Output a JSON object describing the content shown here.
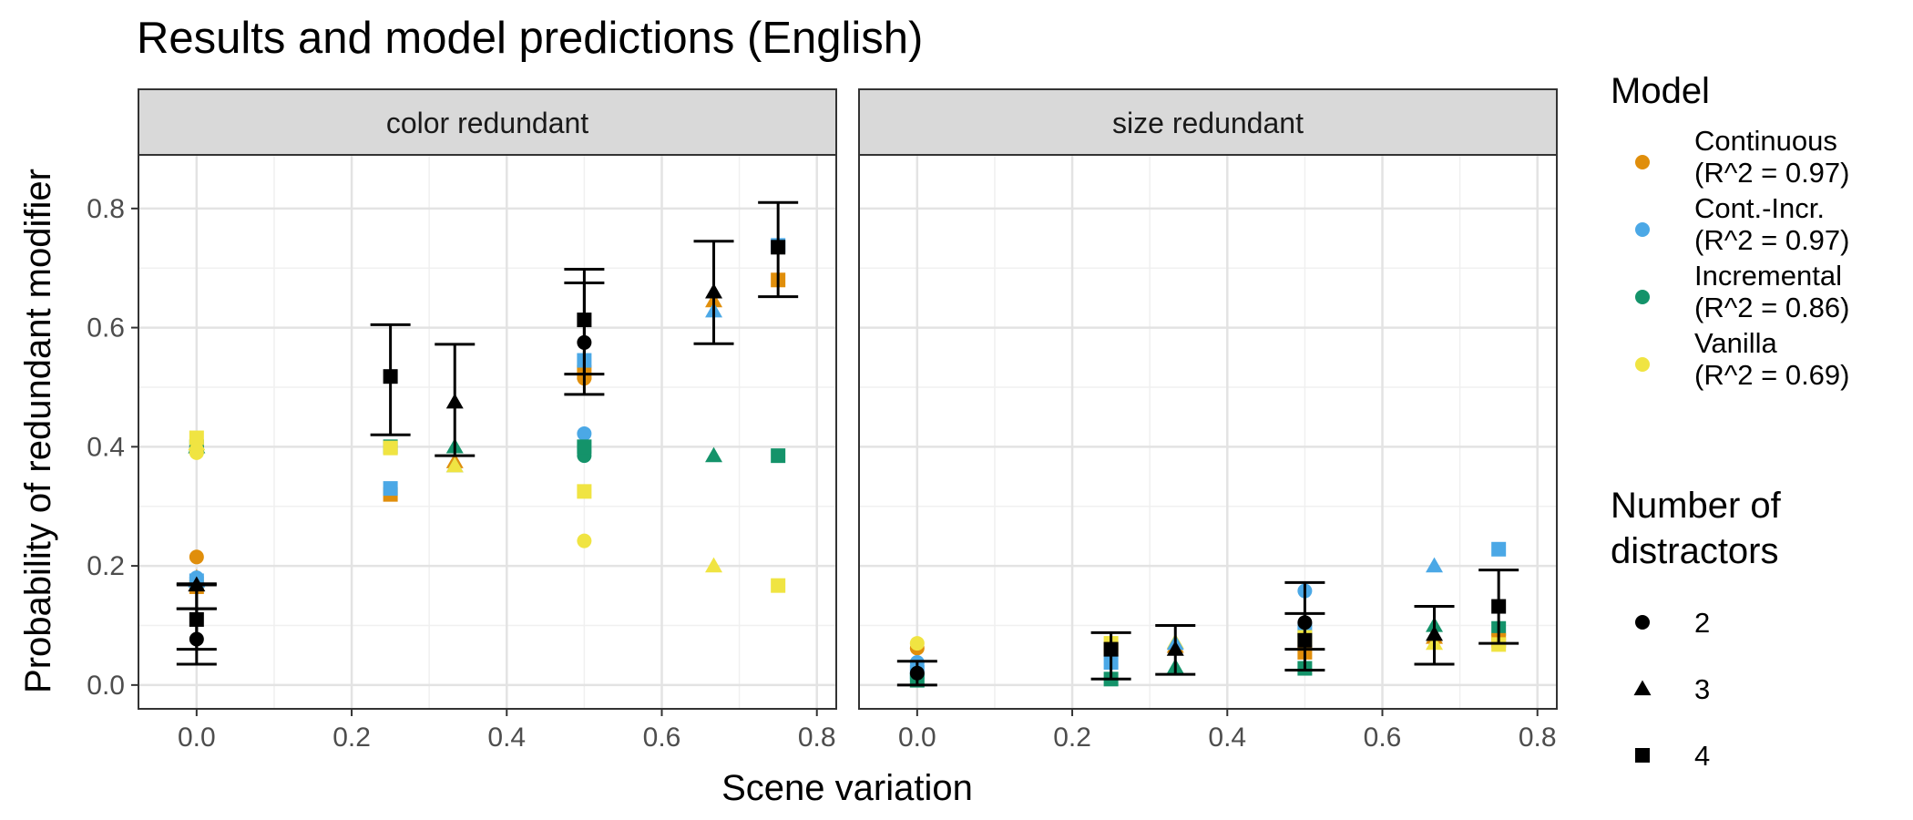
{
  "chart_data": {
    "type": "scatter",
    "title": "Results and model predictions (English)",
    "xlabel": "Scene variation",
    "ylabel": "Probability of redundant modifier",
    "xlim": [
      -0.075,
      0.825
    ],
    "ylim": [
      -0.04,
      0.89
    ],
    "x_ticks": [
      0.0,
      0.2,
      0.4,
      0.6,
      0.8
    ],
    "x_tick_labels": [
      "0.0",
      "0.2",
      "0.4",
      "0.6",
      "0.8"
    ],
    "y_ticks": [
      0.0,
      0.2,
      0.4,
      0.6,
      0.8
    ],
    "y_tick_labels": [
      "0.0",
      "0.2",
      "0.4",
      "0.6",
      "0.8"
    ],
    "grid": true,
    "legend_position": "right",
    "colors": {
      "Continuous": "#E08E0B",
      "Cont.-Incr.": "#4BA8E6",
      "Incremental": "#14936A",
      "Vanilla": "#F0E442",
      "Empirical": "#000000"
    },
    "panels": [
      {
        "strip_label": "color redundant",
        "empirical": [
          {
            "x": 0.0,
            "distractors": 2,
            "y": 0.077,
            "ymin": 0.035,
            "ymax": 0.128
          },
          {
            "x": 0.0,
            "distractors": 3,
            "y": 0.168,
            "ymin": 0.128,
            "ymax": 0.168
          },
          {
            "x": 0.0,
            "distractors": 4,
            "y": 0.11,
            "ymin": 0.06,
            "ymax": 0.17
          },
          {
            "x": 0.25,
            "distractors": 4,
            "y": 0.518,
            "ymin": 0.42,
            "ymax": 0.605
          },
          {
            "x": 0.333,
            "distractors": 3,
            "y": 0.475,
            "ymin": 0.385,
            "ymax": 0.572
          },
          {
            "x": 0.5,
            "distractors": 2,
            "y": 0.575,
            "ymin": 0.488,
            "ymax": 0.675
          },
          {
            "x": 0.5,
            "distractors": 4,
            "y": 0.613,
            "ymin": 0.522,
            "ymax": 0.698
          },
          {
            "x": 0.667,
            "distractors": 3,
            "y": 0.66,
            "ymin": 0.573,
            "ymax": 0.745
          },
          {
            "x": 0.75,
            "distractors": 4,
            "y": 0.735,
            "ymin": 0.652,
            "ymax": 0.81
          }
        ],
        "predictions": [
          {
            "model": "Continuous",
            "x": 0.0,
            "distractors": 2,
            "y": 0.215
          },
          {
            "model": "Continuous",
            "x": 0.0,
            "distractors": 3,
            "y": 0.18
          },
          {
            "model": "Continuous",
            "x": 0.0,
            "distractors": 4,
            "y": 0.165
          },
          {
            "model": "Cont.-Incr.",
            "x": 0.0,
            "distractors": 2,
            "y": 0.18
          },
          {
            "model": "Cont.-Incr.",
            "x": 0.0,
            "distractors": 3,
            "y": 0.175
          },
          {
            "model": "Cont.-Incr.",
            "x": 0.0,
            "distractors": 4,
            "y": 0.175
          },
          {
            "model": "Incremental",
            "x": 0.0,
            "distractors": 2,
            "y": 0.4
          },
          {
            "model": "Incremental",
            "x": 0.0,
            "distractors": 3,
            "y": 0.4
          },
          {
            "model": "Incremental",
            "x": 0.0,
            "distractors": 4,
            "y": 0.4
          },
          {
            "model": "Vanilla",
            "x": 0.0,
            "distractors": 2,
            "y": 0.39
          },
          {
            "model": "Vanilla",
            "x": 0.0,
            "distractors": 3,
            "y": 0.405
          },
          {
            "model": "Vanilla",
            "x": 0.0,
            "distractors": 4,
            "y": 0.415
          },
          {
            "model": "Continuous",
            "x": 0.25,
            "distractors": 4,
            "y": 0.32
          },
          {
            "model": "Cont.-Incr.",
            "x": 0.25,
            "distractors": 4,
            "y": 0.33
          },
          {
            "model": "Incremental",
            "x": 0.25,
            "distractors": 4,
            "y": 0.4
          },
          {
            "model": "Vanilla",
            "x": 0.25,
            "distractors": 4,
            "y": 0.398
          },
          {
            "model": "Continuous",
            "x": 0.333,
            "distractors": 3,
            "y": 0.375
          },
          {
            "model": "Cont.-Incr.",
            "x": 0.333,
            "distractors": 3,
            "y": 0.368
          },
          {
            "model": "Incremental",
            "x": 0.333,
            "distractors": 3,
            "y": 0.4
          },
          {
            "model": "Vanilla",
            "x": 0.333,
            "distractors": 3,
            "y": 0.368
          },
          {
            "model": "Continuous",
            "x": 0.5,
            "distractors": 2,
            "y": 0.515
          },
          {
            "model": "Continuous",
            "x": 0.5,
            "distractors": 4,
            "y": 0.525
          },
          {
            "model": "Cont.-Incr.",
            "x": 0.5,
            "distractors": 2,
            "y": 0.422
          },
          {
            "model": "Cont.-Incr.",
            "x": 0.5,
            "distractors": 4,
            "y": 0.545
          },
          {
            "model": "Incremental",
            "x": 0.5,
            "distractors": 2,
            "y": 0.385
          },
          {
            "model": "Incremental",
            "x": 0.5,
            "distractors": 4,
            "y": 0.4
          },
          {
            "model": "Vanilla",
            "x": 0.5,
            "distractors": 2,
            "y": 0.242
          },
          {
            "model": "Vanilla",
            "x": 0.5,
            "distractors": 4,
            "y": 0.325
          },
          {
            "model": "Continuous",
            "x": 0.667,
            "distractors": 3,
            "y": 0.645
          },
          {
            "model": "Cont.-Incr.",
            "x": 0.667,
            "distractors": 3,
            "y": 0.628
          },
          {
            "model": "Incremental",
            "x": 0.667,
            "distractors": 3,
            "y": 0.385
          },
          {
            "model": "Vanilla",
            "x": 0.667,
            "distractors": 3,
            "y": 0.2
          },
          {
            "model": "Continuous",
            "x": 0.75,
            "distractors": 4,
            "y": 0.68
          },
          {
            "model": "Cont.-Incr.",
            "x": 0.75,
            "distractors": 4,
            "y": 0.738
          },
          {
            "model": "Incremental",
            "x": 0.75,
            "distractors": 4,
            "y": 0.385
          },
          {
            "model": "Vanilla",
            "x": 0.75,
            "distractors": 4,
            "y": 0.167
          }
        ]
      },
      {
        "strip_label": "size redundant",
        "empirical": [
          {
            "x": 0.0,
            "distractors": 2,
            "y": 0.02,
            "ymin": 0.0,
            "ymax": 0.04
          },
          {
            "x": 0.25,
            "distractors": 4,
            "y": 0.06,
            "ymin": 0.01,
            "ymax": 0.088
          },
          {
            "x": 0.333,
            "distractors": 3,
            "y": 0.06,
            "ymin": 0.018,
            "ymax": 0.1
          },
          {
            "x": 0.5,
            "distractors": 2,
            "y": 0.105,
            "ymin": 0.06,
            "ymax": 0.172
          },
          {
            "x": 0.5,
            "distractors": 4,
            "y": 0.075,
            "ymin": 0.025,
            "ymax": 0.12
          },
          {
            "x": 0.667,
            "distractors": 3,
            "y": 0.085,
            "ymin": 0.035,
            "ymax": 0.132
          },
          {
            "x": 0.75,
            "distractors": 4,
            "y": 0.132,
            "ymin": 0.07,
            "ymax": 0.193
          }
        ],
        "predictions": [
          {
            "model": "Continuous",
            "x": 0.0,
            "distractors": 2,
            "y": 0.062
          },
          {
            "model": "Vanilla",
            "x": 0.0,
            "distractors": 2,
            "y": 0.07
          },
          {
            "model": "Cont.-Incr.",
            "x": 0.0,
            "distractors": 2,
            "y": 0.038
          },
          {
            "model": "Cont.-Incr.",
            "x": 0.0,
            "distractors": 4,
            "y": 0.022
          },
          {
            "model": "Incremental",
            "x": 0.0,
            "distractors": 4,
            "y": 0.008
          },
          {
            "model": "Vanilla",
            "x": 0.25,
            "distractors": 4,
            "y": 0.07
          },
          {
            "model": "Continuous",
            "x": 0.25,
            "distractors": 4,
            "y": 0.06
          },
          {
            "model": "Cont.-Incr.",
            "x": 0.25,
            "distractors": 4,
            "y": 0.038
          },
          {
            "model": "Incremental",
            "x": 0.25,
            "distractors": 4,
            "y": 0.01
          },
          {
            "model": "Vanilla",
            "x": 0.333,
            "distractors": 3,
            "y": 0.072
          },
          {
            "model": "Continuous",
            "x": 0.333,
            "distractors": 3,
            "y": 0.065
          },
          {
            "model": "Cont.-Incr.",
            "x": 0.333,
            "distractors": 3,
            "y": 0.07
          },
          {
            "model": "Incremental",
            "x": 0.333,
            "distractors": 3,
            "y": 0.03
          },
          {
            "model": "Cont.-Incr.",
            "x": 0.5,
            "distractors": 2,
            "y": 0.158
          },
          {
            "model": "Continuous",
            "x": 0.5,
            "distractors": 2,
            "y": 0.1
          },
          {
            "model": "Cont.-Incr.",
            "x": 0.5,
            "distractors": 4,
            "y": 0.092
          },
          {
            "model": "Vanilla",
            "x": 0.5,
            "distractors": 4,
            "y": 0.08
          },
          {
            "model": "Continuous",
            "x": 0.5,
            "distractors": 4,
            "y": 0.055
          },
          {
            "model": "Incremental",
            "x": 0.5,
            "distractors": 4,
            "y": 0.028
          },
          {
            "model": "Cont.-Incr.",
            "x": 0.667,
            "distractors": 3,
            "y": 0.2
          },
          {
            "model": "Incremental",
            "x": 0.667,
            "distractors": 3,
            "y": 0.1
          },
          {
            "model": "Continuous",
            "x": 0.667,
            "distractors": 3,
            "y": 0.08
          },
          {
            "model": "Vanilla",
            "x": 0.667,
            "distractors": 3,
            "y": 0.07
          },
          {
            "model": "Cont.-Incr.",
            "x": 0.75,
            "distractors": 4,
            "y": 0.228
          },
          {
            "model": "Incremental",
            "x": 0.75,
            "distractors": 4,
            "y": 0.095
          },
          {
            "model": "Continuous",
            "x": 0.75,
            "distractors": 4,
            "y": 0.075
          },
          {
            "model": "Vanilla",
            "x": 0.75,
            "distractors": 4,
            "y": 0.068
          }
        ]
      }
    ],
    "legend_model": {
      "title": "Model",
      "items": [
        {
          "key": "Continuous",
          "line1": "Continuous",
          "line2": "(R^2 = 0.97)"
        },
        {
          "key": "Cont.-Incr.",
          "line1": "Cont.-Incr.",
          "line2": "(R^2 = 0.97)"
        },
        {
          "key": "Incremental",
          "line1": "Incremental",
          "line2": "(R^2 = 0.86)"
        },
        {
          "key": "Vanilla",
          "line1": "Vanilla",
          "line2": "(R^2 = 0.69)"
        }
      ]
    },
    "legend_shape": {
      "title_line1": "Number of",
      "title_line2": "distractors",
      "items": [
        {
          "label": "2",
          "shape": "circle"
        },
        {
          "label": "3",
          "shape": "triangle"
        },
        {
          "label": "4",
          "shape": "square"
        }
      ]
    }
  }
}
